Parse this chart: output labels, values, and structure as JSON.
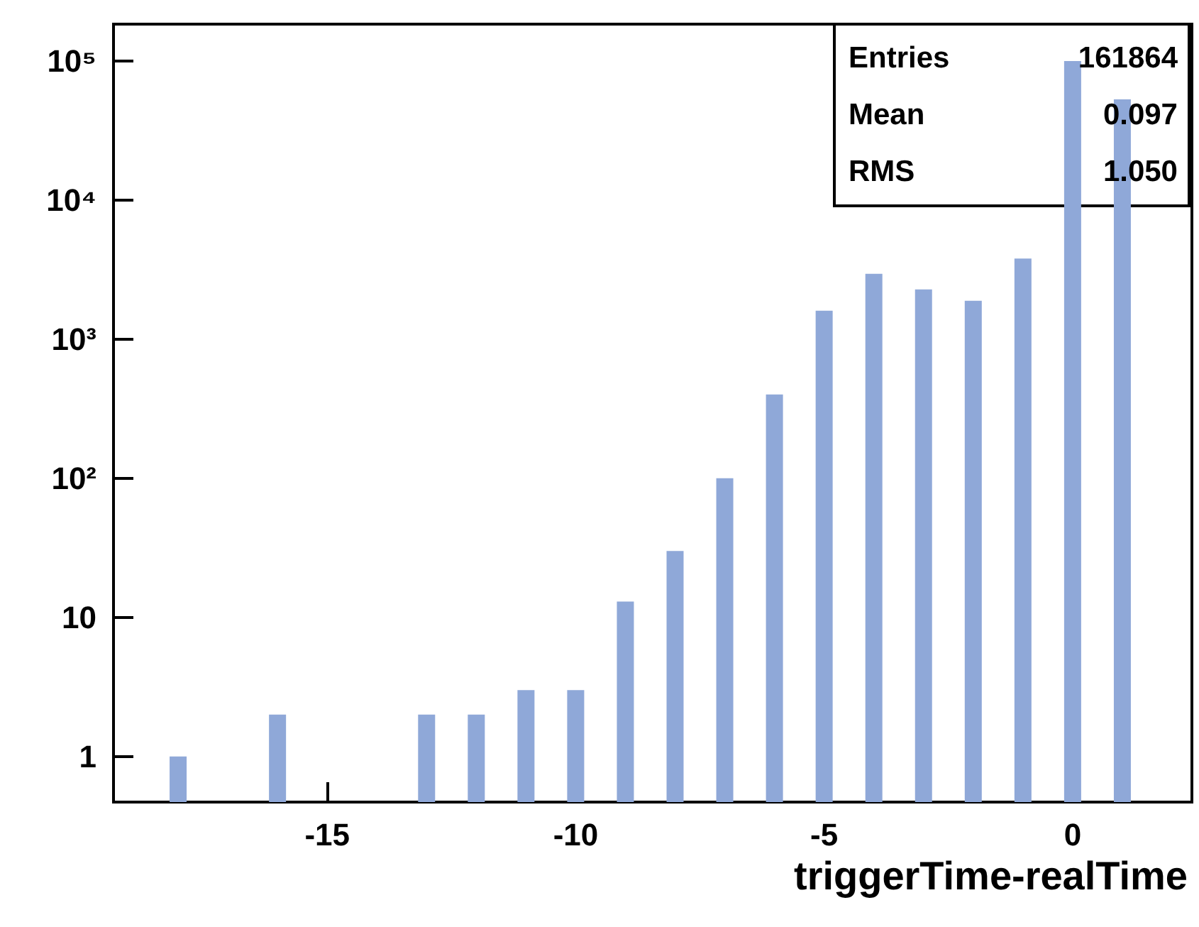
{
  "chart_data": {
    "type": "bar",
    "xlabel": "triggerTime-realTime",
    "x": [
      -18,
      -16,
      -13,
      -12,
      -11,
      -10,
      -9,
      -8,
      -7,
      -6,
      -5,
      -4,
      -3,
      -2,
      -1,
      0,
      1
    ],
    "values": [
      1,
      2,
      2,
      2,
      3,
      3,
      13,
      30,
      100,
      400,
      1600,
      2950,
      2280,
      1890,
      3800,
      100000,
      53000
    ],
    "color": "#8fa8d8",
    "xlim": [
      -19.3,
      2.4
    ],
    "xticks": [
      -15,
      -10,
      -5,
      0
    ],
    "ylim": [
      0.47,
      184000
    ],
    "yticks": [
      1,
      10,
      {
        "value": 100,
        "label": "10²"
      },
      {
        "value": 1000,
        "label": "10³"
      },
      {
        "value": 10000,
        "label": "10⁴"
      },
      {
        "value": 100000,
        "label": "10⁵"
      }
    ],
    "log": "y",
    "grid": false,
    "annotations": [
      "Entries",
      "161864",
      "Mean",
      "0.097",
      "RMS",
      "1.050"
    ]
  }
}
